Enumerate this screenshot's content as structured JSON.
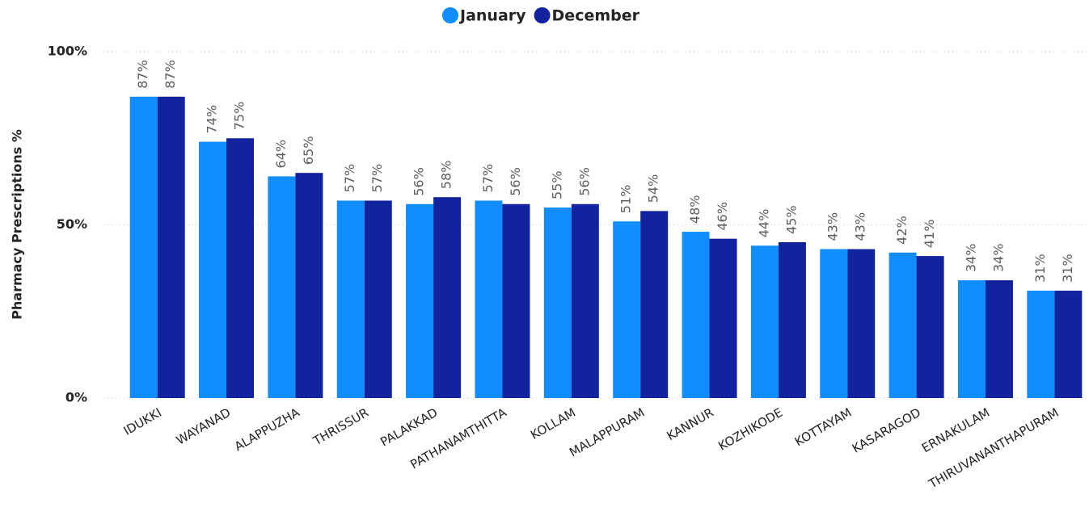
{
  "chart_data": {
    "type": "bar",
    "y_label": "Pharmacy Prescriptions %",
    "categories": [
      "IDUKKI",
      "WAYANAD",
      "ALAPPUZHA",
      "THRISSUR",
      "PALAKKAD",
      "PATHANAMTHITTA",
      "KOLLAM",
      "MALAPPURAM",
      "KANNUR",
      "KOZHIKODE",
      "KOTTAYAM",
      "KASARAGOD",
      "ERNAKULAM",
      "THIRUVANANTHAPURAM"
    ],
    "series": [
      {
        "name": "January",
        "color": "#118dff",
        "values": [
          87,
          74,
          64,
          57,
          56,
          57,
          55,
          51,
          48,
          44,
          43,
          42,
          34,
          31
        ],
        "value_labels": [
          "87%",
          "74%",
          "64%",
          "57%",
          "56%",
          "57%",
          "55%",
          "51%",
          "48%",
          "44%",
          "43%",
          "42%",
          "34%",
          "31%"
        ]
      },
      {
        "name": "December",
        "color": "#12239e",
        "values": [
          87,
          75,
          65,
          57,
          58,
          56,
          56,
          54,
          46,
          45,
          43,
          41,
          34,
          31
        ],
        "value_labels": [
          "87%",
          "75%",
          "65%",
          "57%",
          "58%",
          "56%",
          "56%",
          "54%",
          "46%",
          "45%",
          "43%",
          "41%",
          "34%",
          "31%"
        ]
      }
    ],
    "ylim": [
      0,
      100
    ],
    "yticks": [
      {
        "value": 0,
        "label": "0%"
      },
      {
        "value": 50,
        "label": "50%"
      },
      {
        "value": 100,
        "label": "100%"
      }
    ],
    "grid": true,
    "legend": "top"
  }
}
